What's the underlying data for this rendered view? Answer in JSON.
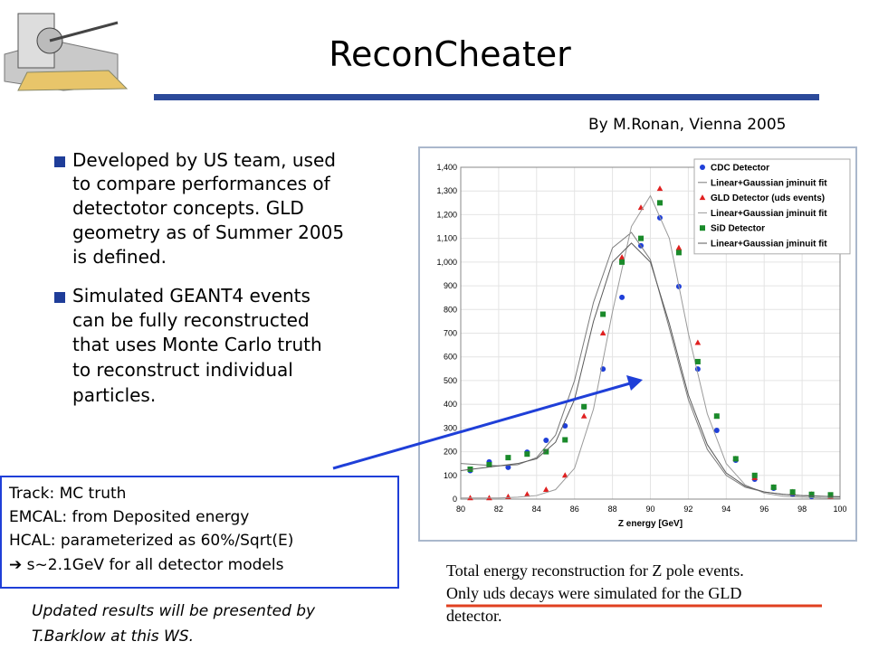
{
  "title": "ReconCheater",
  "author": "By M.Ronan, Vienna 2005",
  "bullets": [
    {
      "lines": [
        "Developed by US team, used",
        "to compare performances of",
        "detectotor concepts. GLD",
        "geometry as of Summer 2005",
        "is defined."
      ]
    },
    {
      "lines": [
        "Simulated GEANT4 events",
        "can be fully reconstructed",
        "that uses Monte Carlo truth",
        "to reconstruct individual",
        "particles."
      ]
    }
  ],
  "box": [
    "Track: MC truth",
    "EMCAL: from Deposited energy",
    "HCAL: parameterized as 60%/Sqrt(E)",
    "➔  s~2.1GeV for all detector models"
  ],
  "note": [
    "Updated results will be presented by",
    "T.Barklow at this WS."
  ],
  "caption": [
    "Total energy reconstruction for Z pole events.",
    "Only uds decays were simulated for the GLD",
    "detector."
  ],
  "chart_data": {
    "type": "scatter",
    "xlabel": "Z energy [GeV]",
    "xlim": [
      80,
      100
    ],
    "xticks": [
      80,
      82,
      84,
      86,
      88,
      90,
      92,
      94,
      96,
      98,
      100
    ],
    "ylim": [
      0,
      1400
    ],
    "yticks": [
      0,
      100,
      200,
      300,
      400,
      500,
      600,
      700,
      800,
      900,
      {
        "value": 1000,
        "label": "1,000"
      },
      {
        "value": 1100,
        "label": "1,100"
      },
      {
        "value": 1200,
        "label": "1,200"
      },
      {
        "value": 1300,
        "label": "1,300"
      },
      {
        "value": 1400,
        "label": "1,400"
      }
    ],
    "grid": true,
    "legend": "top-right",
    "series": [
      {
        "name": "CDC Detector",
        "color": "#1f3fd8",
        "marker": "circle",
        "x": [
          80.5,
          81.5,
          82.5,
          83.5,
          84.5,
          85.5,
          86.5,
          87.5,
          88.5,
          89.5,
          90.5,
          91.5,
          92.5,
          93.5,
          94.5,
          95.5,
          96.5,
          97.5,
          98.5,
          99.5
        ],
        "values": [
          120,
          157,
          134,
          198,
          248,
          309,
          389,
          549,
          851,
          1069,
          1187,
          897,
          549,
          290,
          164,
          84,
          46,
          19,
          11,
          11
        ]
      },
      {
        "name": "Linear+Gaussian jminuit fit",
        "type": "line",
        "color": "#7a7a7a",
        "x": [
          80,
          81,
          82,
          83,
          84,
          85,
          86,
          87,
          88,
          89,
          90,
          91,
          92,
          93,
          94,
          95,
          96,
          97,
          98,
          99,
          100
        ],
        "values": [
          150,
          145,
          140,
          145,
          175,
          270,
          500,
          830,
          1060,
          1125,
          1010,
          720,
          420,
          210,
          100,
          50,
          30,
          20,
          15,
          12,
          10
        ]
      },
      {
        "name": "GLD Detector (uds events)",
        "color": "#e02020",
        "marker": "triangle",
        "x": [
          80.5,
          81.5,
          82.5,
          83.5,
          84.5,
          85.5,
          86.5,
          87.5,
          88.5,
          89.5,
          90.5,
          91.5,
          92.5,
          93.5,
          94.5,
          95.5,
          96.5,
          97.5,
          98.5,
          99.5
        ],
        "values": [
          5,
          5,
          10,
          20,
          40,
          100,
          350,
          700,
          1020,
          1230,
          1310,
          1060,
          660,
          350,
          170,
          90,
          50,
          30,
          20,
          10
        ]
      },
      {
        "name": "Linear+Gaussian jminuit fit",
        "type": "line",
        "color": "#9a9a9a",
        "x": [
          80,
          81,
          82,
          83,
          84,
          85,
          86,
          87,
          88,
          89,
          90,
          91,
          92,
          93,
          94,
          95,
          96,
          97,
          98,
          99,
          100
        ],
        "values": [
          5,
          5,
          5,
          8,
          15,
          40,
          130,
          380,
          790,
          1150,
          1280,
          1100,
          700,
          360,
          150,
          60,
          25,
          12,
          8,
          5,
          4
        ]
      },
      {
        "name": "SiD Detector",
        "color": "#1a8a2a",
        "marker": "square",
        "x": [
          80.5,
          81.5,
          82.5,
          83.5,
          84.5,
          85.5,
          86.5,
          87.5,
          88.5,
          89.5,
          90.5,
          91.5,
          92.5,
          93.5,
          94.5,
          95.5,
          96.5,
          97.5,
          98.5,
          99.5
        ],
        "values": [
          126,
          145,
          175,
          190,
          200,
          250,
          390,
          780,
          1000,
          1100,
          1250,
          1040,
          580,
          350,
          170,
          100,
          50,
          30,
          20,
          18
        ]
      },
      {
        "name": "Linear+Gaussian jminuit fit",
        "type": "line",
        "color": "#5a5a5a",
        "x": [
          80,
          81,
          82,
          83,
          84,
          85,
          86,
          87,
          88,
          89,
          90,
          91,
          92,
          93,
          94,
          95,
          96,
          97,
          98,
          99,
          100
        ],
        "values": [
          120,
          130,
          140,
          150,
          170,
          240,
          420,
          750,
          1000,
          1080,
          1000,
          740,
          440,
          230,
          110,
          55,
          30,
          20,
          15,
          12,
          10
        ]
      }
    ]
  }
}
